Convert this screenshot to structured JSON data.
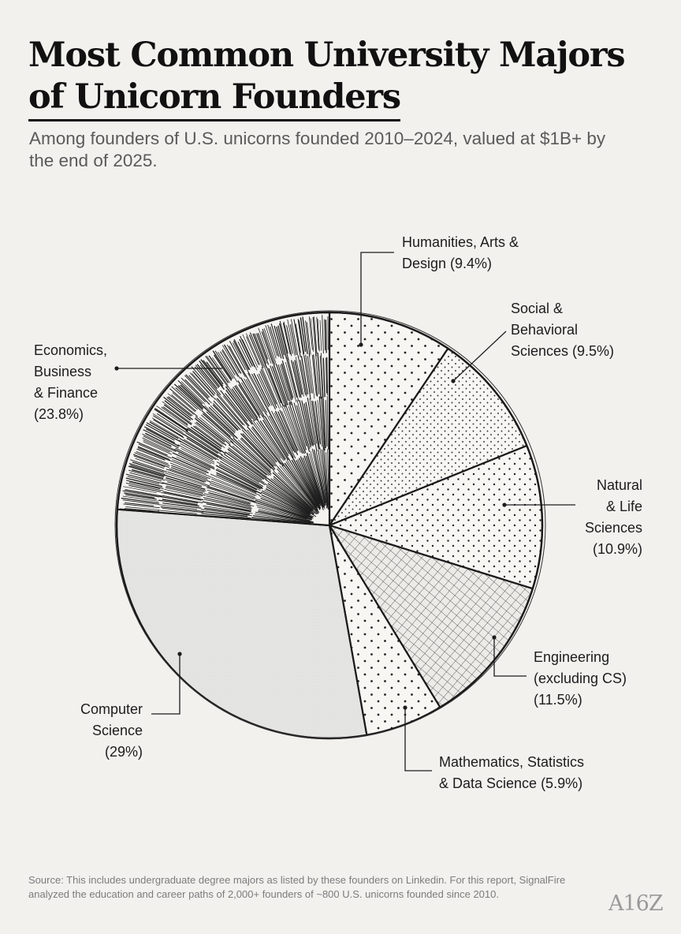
{
  "title_line1": "Most Common University Majors",
  "title_line2": "of Unicorn Founders",
  "subtitle": "Among founders of U.S. unicorns founded 2010–2024, valued at $1B+ by the end of 2025.",
  "source": "Source: This includes undergraduate degree majors as listed by these founders on Linkedin. For this report, SignalFire analyzed the education and career paths of 2,000+ founders of ~800 U.S. unicorns founded since 2010.",
  "logo_text": "A16Z",
  "chart_data": {
    "type": "pie",
    "unit": "%",
    "slices": [
      {
        "label": "Humanities, Arts & Design",
        "value": 9.4,
        "lines": [
          "Humanities, Arts &",
          "Design (9.4%)"
        ],
        "pattern": "dots-sparse"
      },
      {
        "label": "Social & Behavioral Sciences",
        "value": 9.5,
        "lines": [
          "Social &",
          "Behavioral",
          "Sciences (9.5%)"
        ],
        "pattern": "dots-dense"
      },
      {
        "label": "Natural & Life Sciences",
        "value": 10.9,
        "lines": [
          "Natural",
          "& Life",
          "Sciences",
          "(10.9%)"
        ],
        "pattern": "dots-medium"
      },
      {
        "label": "Engineering (excluding CS)",
        "value": 11.5,
        "lines": [
          "Engineering",
          "(excluding CS)",
          "(11.5%)"
        ],
        "pattern": "crosshatch"
      },
      {
        "label": "Mathematics, Statistics & Data Science",
        "value": 5.9,
        "lines": [
          "Mathematics, Statistics",
          "& Data Science (5.9%)"
        ],
        "pattern": "dots-sparse"
      },
      {
        "label": "Computer Science",
        "value": 29,
        "lines": [
          "Computer",
          "Science",
          "(29%)"
        ],
        "pattern": "grey"
      },
      {
        "label": "Economics, Business & Finance",
        "value": 23.8,
        "lines": [
          "Economics,",
          "Business",
          "& Finance",
          "(23.8%)"
        ],
        "pattern": "hatch"
      }
    ]
  }
}
